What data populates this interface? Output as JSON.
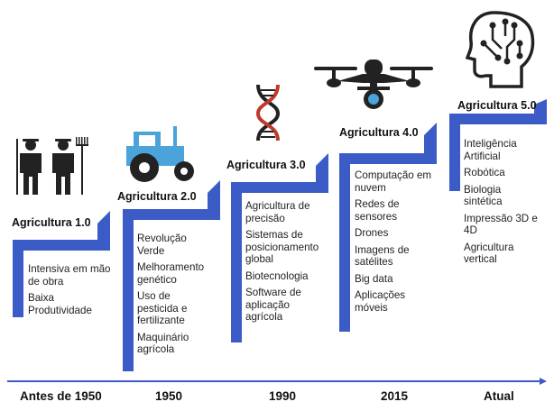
{
  "colors": {
    "accent": "#3b5cc6",
    "icon": "#222222",
    "tractor": "#4aa3d9"
  },
  "stages": [
    {
      "title": "Agricultura 1.0",
      "icon": "farmers-icon",
      "items": [
        "Intensiva em mão de obra",
        "Baixa Produtividade"
      ]
    },
    {
      "title": "Agricultura 2.0",
      "icon": "tractor-icon",
      "items": [
        "Revolução Verde",
        "Melhoramento genético",
        "Uso de pesticida e fertilizante",
        "Maquinário agrícola"
      ]
    },
    {
      "title": "Agricultura 3.0",
      "icon": "dna-icon",
      "items": [
        "Agricultura de precisão",
        "Sistemas de posicionamento global",
        "Biotecnologia",
        "Software de aplicação agrícola"
      ]
    },
    {
      "title": "Agricultura 4.0",
      "icon": "drone-icon",
      "items": [
        "Computação em nuvem",
        "Redes de sensores",
        "Drones",
        "Imagens de satélites",
        "Big data",
        "Aplicações móveis"
      ]
    },
    {
      "title": "Agricultura 5.0",
      "icon": "ai-head-icon",
      "items": [
        "Inteligência Artificial",
        "Robótica",
        "Biologia sintética",
        "Impressão 3D e 4D",
        "Agricultura vertical"
      ]
    }
  ],
  "timeline": [
    "Antes de 1950",
    "1950",
    "1990",
    "2015",
    "Atual"
  ]
}
